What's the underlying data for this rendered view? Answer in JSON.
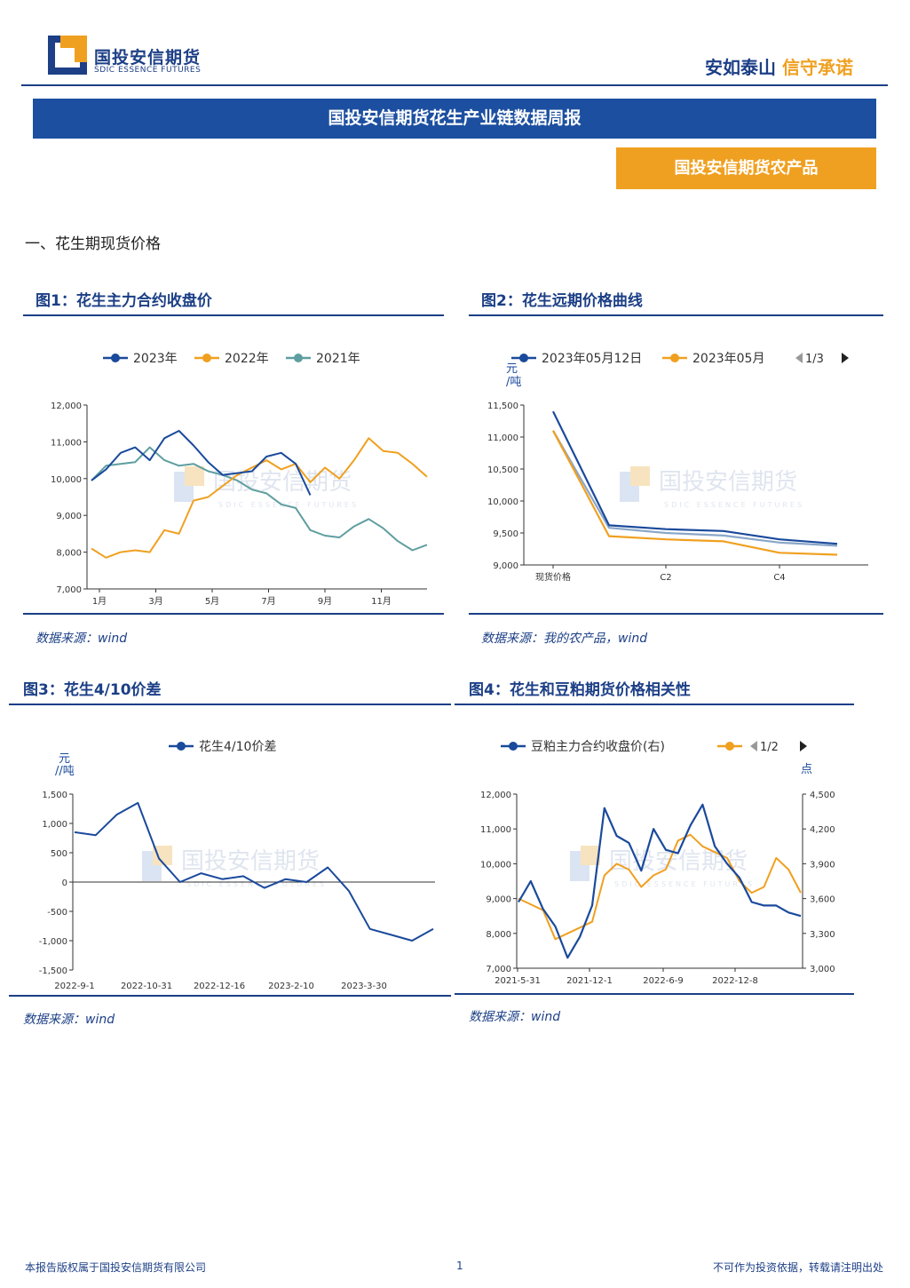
{
  "header": {
    "logo_cn": "国投安信期货",
    "logo_en": "SDIC ESSENCE FUTURES",
    "slogan_a": "安如泰山",
    "slogan_b": "信守承诺"
  },
  "report_title": "国投安信期货花生产业链数据周报",
  "category": "国投安信期货农产品",
  "section_title": "一、花生期现货价格",
  "watermark": {
    "cn": "国投安信期货",
    "en": "SDIC ESSENCE FUTURES"
  },
  "figures": {
    "fig1": {
      "title": "图1：花生主力合约收盘价",
      "source": "数据来源：wind"
    },
    "fig2": {
      "title": "图2：花生远期价格曲线",
      "source": "数据来源：我的农产品，wind",
      "ylabel": "元/吨",
      "pager": "1/3"
    },
    "fig3": {
      "title": "图3：花生4/10价差",
      "source": "数据来源：wind",
      "ylabel": "元/吨"
    },
    "fig4": {
      "title": "图4：花生和豆粕期货价格相关性",
      "source": "数据来源：wind",
      "ylabel_right": "点",
      "pager": "1/2"
    }
  },
  "footer": {
    "left": "本报告版权属于国投安信期货有限公司",
    "page": "1",
    "right": "不可作为投资依据，转载请注明出处"
  },
  "colors": {
    "navy": "#1c3f86",
    "orange": "#f0a020",
    "teal": "#5f9ea0",
    "series_blue": "#1a4a9c"
  },
  "chart_data": [
    {
      "type": "line",
      "title": "图1：花生主力合约收盘价",
      "x_ticks": [
        "1月",
        "3月",
        "5月",
        "7月",
        "9月",
        "11月"
      ],
      "ylim": [
        7000,
        12000
      ],
      "y_ticks": [
        "12,000",
        "11,000",
        "10,000",
        "9,000",
        "8,000",
        "7,000"
      ],
      "x_positions": [
        0,
        1,
        2,
        3,
        4,
        5,
        6,
        7,
        8,
        9,
        10,
        11,
        12,
        13,
        14,
        15,
        16,
        17,
        18,
        19,
        20,
        21,
        22,
        23
      ],
      "series": [
        {
          "name": "2023年",
          "values": [
            9950,
            10250,
            10700,
            10850,
            10500,
            11100,
            11300,
            10900,
            10450,
            10100,
            10150,
            10200,
            10600,
            10700,
            10400,
            9550
          ]
        },
        {
          "name": "2022年",
          "values": [
            8100,
            7850,
            8000,
            8050,
            8000,
            8600,
            8500,
            9400,
            9500,
            9800,
            10100,
            10300,
            10500,
            10250,
            10400,
            9900,
            10300,
            10000,
            10500,
            11100,
            10750,
            10700,
            10400,
            10050
          ]
        },
        {
          "name": "2021年",
          "values": [
            9950,
            10350,
            10400,
            10450,
            10850,
            10500,
            10350,
            10400,
            10200,
            10100,
            9950,
            9700,
            9600,
            9300,
            9200,
            8600,
            8450,
            8400,
            8700,
            8900,
            8650,
            8300,
            8050,
            8200
          ]
        }
      ]
    },
    {
      "type": "line",
      "title": "图2：花生远期价格曲线",
      "x_ticks": [
        "现货价格",
        "C2",
        "C4"
      ],
      "ylim": [
        9000,
        11500
      ],
      "y_ticks": [
        "11,500",
        "11,000",
        "10,500",
        "10,000",
        "9,500",
        "9,000"
      ],
      "series": [
        {
          "name": "2023年05月12日",
          "values": [
            11400,
            9620,
            9560,
            9530,
            9400,
            9330
          ]
        },
        {
          "name": "2023年05月",
          "values": [
            11100,
            9450,
            9400,
            9370,
            9190,
            9160
          ]
        },
        {
          "name": "",
          "values": [
            11100,
            9580,
            9500,
            9460,
            9350,
            9300
          ]
        }
      ]
    },
    {
      "type": "line",
      "title": "图3：花生4/10价差",
      "x_ticks": [
        "2022-9-1",
        "2022-10-31",
        "2022-12-16",
        "2023-2-10",
        "2023-3-30"
      ],
      "ylim": [
        -1500,
        1500
      ],
      "y_ticks": [
        "1,500",
        "1,000",
        "500",
        "0",
        "-500",
        "-1,000",
        "-1,500"
      ],
      "series": [
        {
          "name": "花生4/10价差",
          "values": [
            850,
            800,
            1150,
            1350,
            400,
            0,
            150,
            50,
            100,
            -100,
            50,
            0,
            250,
            -150,
            -800,
            -900,
            -1000,
            -800
          ]
        }
      ]
    },
    {
      "type": "line",
      "title": "图4：花生和豆粕期货价格相关性",
      "x_ticks": [
        "2021-5-31",
        "2021-12-1",
        "2022-6-9",
        "2022-12-8"
      ],
      "ylim": [
        7000,
        12000
      ],
      "y_ticks": [
        "12,000",
        "11,000",
        "10,000",
        "9,000",
        "8,000",
        "7,000"
      ],
      "y2lim": [
        3000,
        4500
      ],
      "y2_ticks": [
        "4,500",
        "4,200",
        "3,900",
        "3,600",
        "3,300",
        "3,000"
      ],
      "series": [
        {
          "name": "豆粕主力合约收盘价(右)",
          "axis": "right",
          "values": [
            3600,
            3550,
            3500,
            3250,
            3300,
            3350,
            3400,
            3800,
            3900,
            3850,
            3700,
            3800,
            3850,
            4100,
            4150,
            4050,
            4000,
            3950,
            3750,
            3650,
            3700,
            3950,
            3850,
            3650
          ]
        },
        {
          "name": "",
          "axis": "left",
          "values": [
            8900,
            9500,
            8700,
            8200,
            7300,
            7900,
            8800,
            11600,
            10800,
            10600,
            9800,
            11000,
            10400,
            10300,
            11100,
            11700,
            10500,
            10000,
            9600,
            8900,
            8800,
            8800,
            8600,
            8500
          ]
        }
      ]
    }
  ]
}
